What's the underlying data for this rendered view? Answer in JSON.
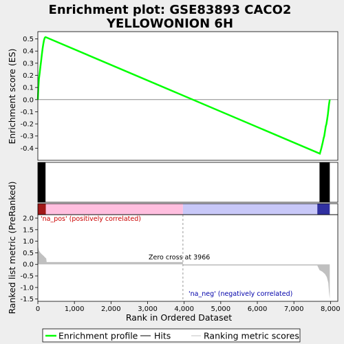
{
  "chart_data": {
    "type": "line",
    "title_lines": [
      "Enrichment plot: GSE83893 CACO2",
      "YELLOWONION 6H"
    ],
    "es_panel": {
      "ylabel": "Enrichment score (ES)",
      "ylim": [
        -0.5,
        0.56
      ],
      "yticks": [
        0.5,
        0.4,
        0.3,
        0.2,
        0.1,
        0.0,
        -0.1,
        -0.2,
        -0.3,
        -0.4
      ],
      "ytick_labels": [
        "0.5",
        "0.4",
        "0.3",
        "0.2",
        "0.1",
        "0.0",
        "-0.1",
        "-0.2",
        "-0.3",
        "-0.4"
      ],
      "series": [
        {
          "name": "Enrichment profile",
          "color": "#00ff00",
          "x": [
            0,
            15,
            30,
            50,
            70,
            90,
            110,
            130,
            150,
            170,
            190,
            210,
            7710,
            7750,
            7790,
            7810,
            7830,
            7850,
            7870,
            7890,
            7910,
            7930,
            7945,
            7960,
            7980
          ],
          "y": [
            0.0,
            0.1,
            0.17,
            0.22,
            0.27,
            0.32,
            0.37,
            0.42,
            0.46,
            0.49,
            0.51,
            0.515,
            -0.445,
            -0.4,
            -0.35,
            -0.32,
            -0.3,
            -0.26,
            -0.22,
            -0.2,
            -0.16,
            -0.12,
            -0.08,
            -0.04,
            0.0
          ]
        }
      ]
    },
    "hits_panel": {
      "hit_ranges": [
        [
          5,
          210
        ],
        [
          7700,
          7980
        ]
      ],
      "hit_color": "#000000"
    },
    "rank_bar": {
      "segments": [
        {
          "from": 0,
          "to": 220,
          "color": "#a01818"
        },
        {
          "from": 220,
          "to": 3966,
          "color": "#ffbfdf"
        },
        {
          "from": 3966,
          "to": 7640,
          "color": "#c8c8f8"
        },
        {
          "from": 7640,
          "to": 7980,
          "color": "#3030a0"
        }
      ]
    },
    "metric_panel": {
      "ylabel": "Ranked list metric (PreRanked)",
      "ylim": [
        -1.6,
        2.15
      ],
      "yticks": [
        2.0,
        1.5,
        1.0,
        0.5,
        0.0,
        -0.5,
        -1.0,
        -1.5
      ],
      "ytick_labels": [
        "2.0",
        "1.5",
        "1.0",
        "0.5",
        "0.0",
        "-0.5",
        "-1.0",
        "-1.5"
      ],
      "profile_x": [
        0,
        10,
        30,
        60,
        100,
        150,
        200,
        230,
        240,
        3966,
        3967,
        7640,
        7700,
        7780,
        7850,
        7900,
        7940,
        7960,
        7980
      ],
      "profile_y": [
        1.3,
        0.75,
        0.6,
        0.52,
        0.45,
        0.38,
        0.3,
        0.25,
        0.1,
        0.1,
        -0.05,
        -0.05,
        -0.25,
        -0.32,
        -0.42,
        -0.55,
        -0.8,
        -1.2,
        -1.5
      ],
      "fill_color": "#c0c0c0",
      "pos_label": "'na_pos' (positively correlated)",
      "neg_label": "'na_neg' (negatively correlated)",
      "zero_cross_label": "Zero cross at 3966",
      "zero_cross": 3966
    },
    "xlabel": "Rank in Ordered Dataset",
    "xlim": [
      0,
      8200
    ],
    "xticks": [
      0,
      1000,
      2000,
      3000,
      4000,
      5000,
      6000,
      7000,
      8000
    ],
    "xtick_labels": [
      "0",
      "1,000",
      "2,000",
      "3,000",
      "4,000",
      "5,000",
      "6,000",
      "7,000",
      "8,000"
    ],
    "legend": [
      {
        "label": "Enrichment profile",
        "color": "#00ff00",
        "style": "thick"
      },
      {
        "label": "Hits",
        "color": "#000000",
        "style": "thin"
      },
      {
        "label": "Ranking metric scores",
        "color": "#c0c0c0",
        "style": "thin"
      }
    ],
    "legend_position": "bottom"
  }
}
